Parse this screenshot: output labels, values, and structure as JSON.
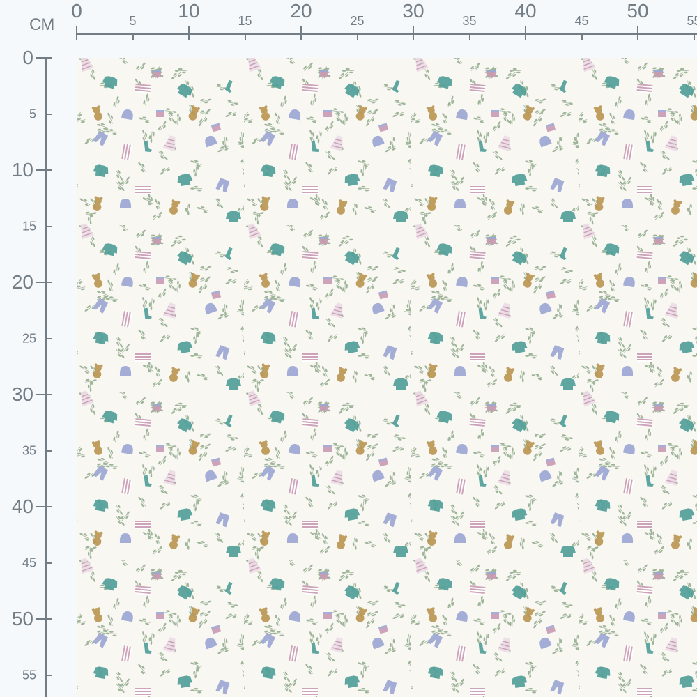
{
  "ruler": {
    "unit": "CM",
    "top_labels": [
      "0",
      "5",
      "10",
      "15",
      "20",
      "25",
      "30",
      "35",
      "40",
      "45",
      "50",
      "55"
    ],
    "left_labels": [
      "0",
      "5",
      "10",
      "15",
      "20",
      "25",
      "30",
      "35",
      "40",
      "45",
      "50",
      "55"
    ],
    "color": "#737d86"
  },
  "fabric": {
    "background": "#f8f7f2",
    "motifs": [
      "teal-sweater-icon",
      "striped-top-icon",
      "teddy-bear-icon",
      "blue-hat-icon",
      "blue-pants-icon",
      "striped-dress-icon",
      "sock-icon",
      "pink-cup-icon",
      "leaf-sprig-icon"
    ],
    "colors": {
      "teal": "#4f9e98",
      "lavender": "#9ba6d3",
      "pink": "#c99ab3",
      "mustard": "#b99550",
      "leaf": "#9fb59a"
    }
  }
}
